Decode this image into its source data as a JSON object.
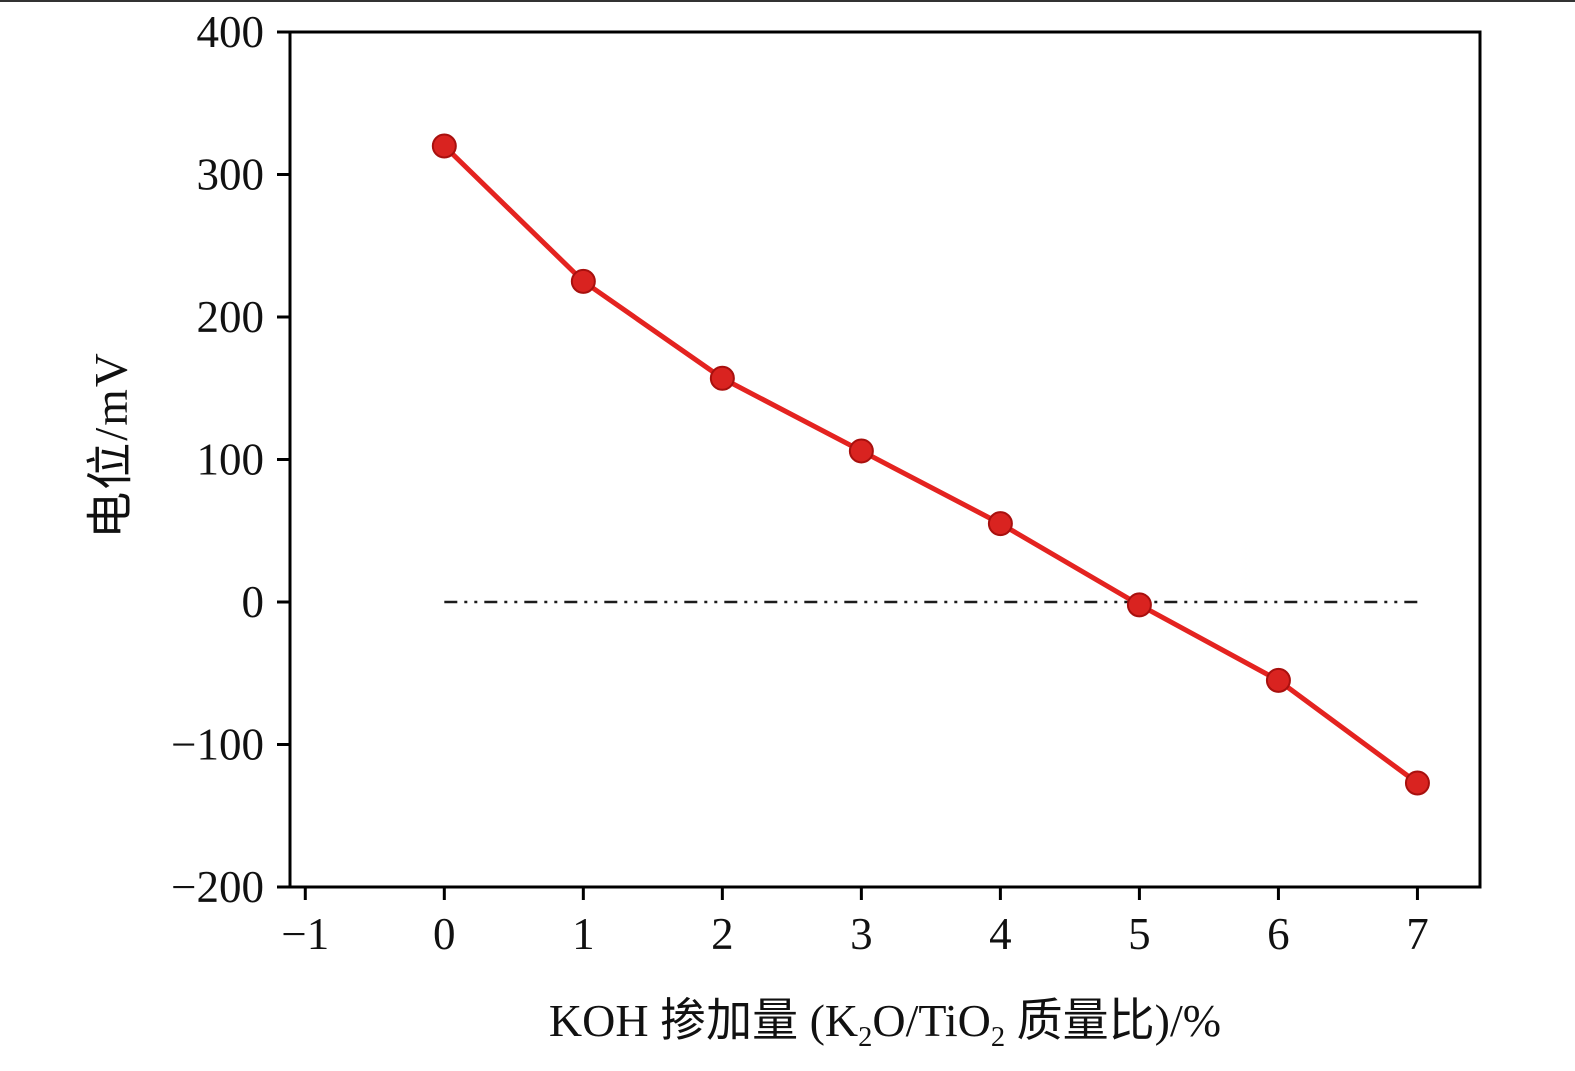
{
  "figure": {
    "background": "#ffffff",
    "frame_color": "#000000"
  },
  "chart_data": {
    "type": "line",
    "title": "",
    "xlabel": "KOH 掺加量 (K2O/TiO2 质量比)/%",
    "xlabel_parts": [
      {
        "text": "KOH 掺加量 (K"
      },
      {
        "text": "2",
        "sub": true
      },
      {
        "text": "O/TiO"
      },
      {
        "text": "2",
        "sub": true
      },
      {
        "text": " 质量比)/%"
      }
    ],
    "ylabel": "电位/mV",
    "x": [
      0,
      1,
      2,
      3,
      4,
      5,
      6,
      7
    ],
    "y": [
      320,
      225,
      157,
      106,
      55,
      -2,
      -55,
      -127
    ],
    "xlim": [
      -1.11,
      7.45
    ],
    "ylim": [
      -200,
      400
    ],
    "xticks": [
      -1,
      0,
      1,
      2,
      3,
      4,
      5,
      6,
      7
    ],
    "yticks": [
      -200,
      -100,
      0,
      100,
      200,
      300,
      400
    ],
    "grid": false,
    "legend": null,
    "series": [
      {
        "name": "电位",
        "color": "#e42320",
        "marker": "circle",
        "marker_color": "#d92320",
        "marker_edge_color": "#a8100e"
      }
    ],
    "reference_line": {
      "y": 0,
      "x_start": 0,
      "x_end": 7,
      "style": "dash-dot",
      "color": "#1c1c1c"
    }
  }
}
